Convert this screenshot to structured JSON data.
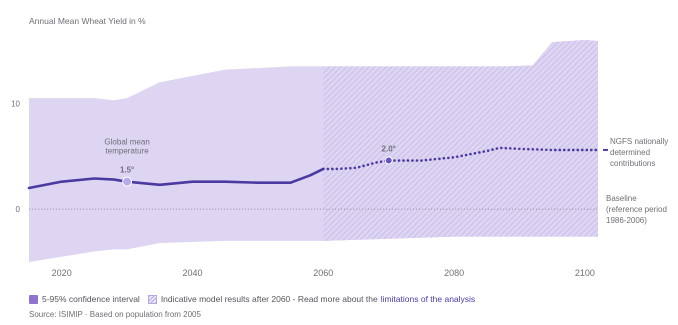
{
  "chart_data": {
    "type": "area",
    "title": "Annual Mean Wheat Yield in %",
    "xlim": [
      2015,
      2102
    ],
    "ylim": [
      -5,
      16
    ],
    "x_ticks": [
      2020,
      2040,
      2060,
      2080,
      2100
    ],
    "y_ticks": [
      {
        "value": 0,
        "label": "0"
      },
      {
        "value": 10,
        "label": "10"
      }
    ],
    "band": {
      "name": "5-95% confidence interval",
      "x": [
        2015,
        2020,
        2025,
        2028,
        2030,
        2035,
        2045,
        2055,
        2060,
        2070,
        2080,
        2088,
        2092,
        2095,
        2100,
        2102
      ],
      "upper": [
        10.5,
        10.5,
        10.5,
        10.3,
        10.5,
        12.0,
        13.2,
        13.5,
        13.5,
        13.5,
        13.5,
        13.5,
        13.6,
        15.8,
        16.0,
        15.9
      ],
      "lower": [
        -5.0,
        -4.5,
        -4.0,
        -3.8,
        -3.8,
        -3.2,
        -3.0,
        -3.0,
        -3.0,
        -2.8,
        -2.6,
        -2.6,
        -2.6,
        -2.6,
        -2.6,
        -2.6
      ],
      "color": "#ddd5f1"
    },
    "hatch_from_x": 2060,
    "hatch_label": "Indicative model results after 2060 - Read more about the",
    "hatch_link": "limitations of the analysis",
    "series": [
      {
        "name": "NGFS nationally determined contributions",
        "label_lines": [
          "NGFS nationally",
          "determined",
          "contributions"
        ],
        "x": [
          2015,
          2020,
          2025,
          2028,
          2030,
          2035,
          2040,
          2045,
          2050,
          2055,
          2058,
          2060,
          2062,
          2065,
          2068,
          2070,
          2075,
          2080,
          2085,
          2087,
          2090,
          2095,
          2100,
          2102
        ],
        "y": [
          2.0,
          2.6,
          2.9,
          2.8,
          2.6,
          2.3,
          2.6,
          2.6,
          2.5,
          2.5,
          3.2,
          3.8,
          3.8,
          3.9,
          4.4,
          4.6,
          4.6,
          4.9,
          5.5,
          5.8,
          5.7,
          5.6,
          5.6,
          5.6
        ],
        "color": "#4b3aa0",
        "dashed_after": 2060
      }
    ],
    "baseline": {
      "value": 0,
      "label_lines": [
        "Baseline",
        "(reference period",
        "1986-2006)"
      ]
    },
    "markers": [
      {
        "x": 2030,
        "y": 2.6,
        "label": "1.5°",
        "caption_lines": [
          "Global mean",
          "temperature"
        ],
        "color": "#b9a9ec"
      },
      {
        "x": 2070,
        "y": 4.6,
        "label": "2.0°",
        "caption_lines": [],
        "color": "#6753c4"
      }
    ],
    "grid": false
  },
  "legend": {
    "ci_label": "5-95% confidence interval",
    "hatch_label": "Indicative model results after 2060 - Read more about the",
    "hatch_link": "limitations of the analysis"
  },
  "source": "Source: ISIMIP · Based on population from 2005"
}
